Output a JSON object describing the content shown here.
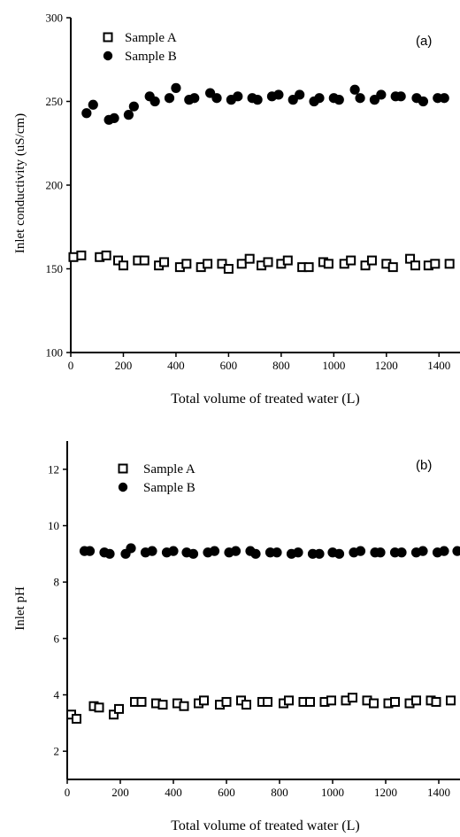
{
  "chart_data": [
    {
      "type": "scatter",
      "panel_label": "(a)",
      "xlabel": "Total volume of treated water (L)",
      "ylabel": "Inlet conductivity (uS/cm)",
      "xlim": [
        0,
        1500
      ],
      "ylim": [
        100,
        300
      ],
      "xticks": [
        0,
        200,
        400,
        600,
        800,
        1000,
        1200,
        1400
      ],
      "xtick_labels": [
        "0",
        "200",
        "400",
        "600",
        "800",
        "1000",
        "1200",
        "1400"
      ],
      "yticks": [
        100,
        150,
        200,
        250,
        300
      ],
      "ytick_labels": [
        "100",
        "150",
        "200",
        "250",
        "300"
      ],
      "legend_position": "top-left",
      "grid": false,
      "series": [
        {
          "name": "Sample A",
          "marker": "open-square",
          "x": [
            10,
            40,
            110,
            135,
            180,
            200,
            255,
            280,
            335,
            355,
            415,
            440,
            495,
            520,
            575,
            600,
            650,
            680,
            725,
            750,
            800,
            825,
            880,
            905,
            960,
            980,
            1040,
            1065,
            1120,
            1145,
            1200,
            1225,
            1290,
            1310,
            1360,
            1385,
            1440
          ],
          "y": [
            157,
            158,
            157,
            158,
            155,
            152,
            155,
            155,
            152,
            154,
            151,
            153,
            151,
            153,
            153,
            150,
            153,
            156,
            152,
            154,
            153,
            155,
            151,
            151,
            154,
            153,
            153,
            155,
            152,
            155,
            153,
            151,
            156,
            152,
            152,
            153,
            153
          ]
        },
        {
          "name": "Sample B",
          "marker": "filled-circle",
          "x": [
            60,
            85,
            145,
            165,
            220,
            240,
            300,
            320,
            375,
            400,
            450,
            470,
            530,
            555,
            610,
            635,
            690,
            710,
            765,
            790,
            845,
            870,
            925,
            945,
            1000,
            1020,
            1080,
            1100,
            1155,
            1180,
            1235,
            1255,
            1315,
            1340,
            1395,
            1420
          ],
          "y": [
            243,
            248,
            239,
            240,
            242,
            247,
            253,
            250,
            252,
            258,
            251,
            252,
            255,
            252,
            251,
            253,
            252,
            251,
            253,
            254,
            251,
            254,
            250,
            252,
            252,
            251,
            257,
            252,
            251,
            254,
            253,
            253,
            252,
            250,
            252,
            252
          ]
        }
      ]
    },
    {
      "type": "scatter",
      "panel_label": "(b)",
      "xlabel": "Total volume of treated water (L)",
      "ylabel": "Inlet pH",
      "xlim": [
        0,
        1500
      ],
      "ylim": [
        1,
        13
      ],
      "xticks": [
        0,
        200,
        400,
        600,
        800,
        1000,
        1200,
        1400
      ],
      "xtick_labels": [
        "0",
        "200",
        "400",
        "600",
        "800",
        "1000",
        "1200",
        "1400"
      ],
      "yticks": [
        2,
        4,
        6,
        8,
        10,
        12
      ],
      "ytick_labels": [
        "2",
        "4",
        "6",
        "8",
        "10",
        "12"
      ],
      "legend_position": "top-left",
      "grid": false,
      "series": [
        {
          "name": "Sample A",
          "marker": "open-square",
          "x": [
            15,
            35,
            100,
            120,
            175,
            195,
            255,
            280,
            335,
            360,
            415,
            440,
            495,
            515,
            575,
            600,
            655,
            675,
            735,
            755,
            815,
            835,
            890,
            915,
            970,
            995,
            1050,
            1075,
            1130,
            1155,
            1210,
            1235,
            1290,
            1315,
            1370,
            1390,
            1445
          ],
          "y": [
            3.3,
            3.15,
            3.6,
            3.55,
            3.3,
            3.5,
            3.75,
            3.75,
            3.7,
            3.65,
            3.7,
            3.6,
            3.7,
            3.8,
            3.65,
            3.75,
            3.8,
            3.65,
            3.75,
            3.75,
            3.7,
            3.8,
            3.75,
            3.75,
            3.75,
            3.8,
            3.8,
            3.9,
            3.8,
            3.7,
            3.7,
            3.75,
            3.7,
            3.8,
            3.8,
            3.75,
            3.8
          ]
        },
        {
          "name": "Sample B",
          "marker": "filled-circle",
          "x": [
            65,
            85,
            140,
            160,
            220,
            240,
            295,
            320,
            375,
            400,
            450,
            475,
            530,
            555,
            610,
            635,
            690,
            710,
            765,
            790,
            845,
            870,
            925,
            950,
            1000,
            1025,
            1080,
            1105,
            1160,
            1180,
            1235,
            1260,
            1315,
            1340,
            1395,
            1420,
            1470
          ],
          "y": [
            9.1,
            9.1,
            9.05,
            9.0,
            9.0,
            9.2,
            9.05,
            9.1,
            9.05,
            9.1,
            9.05,
            9.0,
            9.05,
            9.1,
            9.05,
            9.1,
            9.1,
            9.0,
            9.05,
            9.05,
            9.0,
            9.05,
            9.0,
            9.0,
            9.05,
            9.0,
            9.05,
            9.1,
            9.05,
            9.05,
            9.05,
            9.05,
            9.05,
            9.1,
            9.05,
            9.1,
            9.1
          ]
        }
      ]
    }
  ]
}
